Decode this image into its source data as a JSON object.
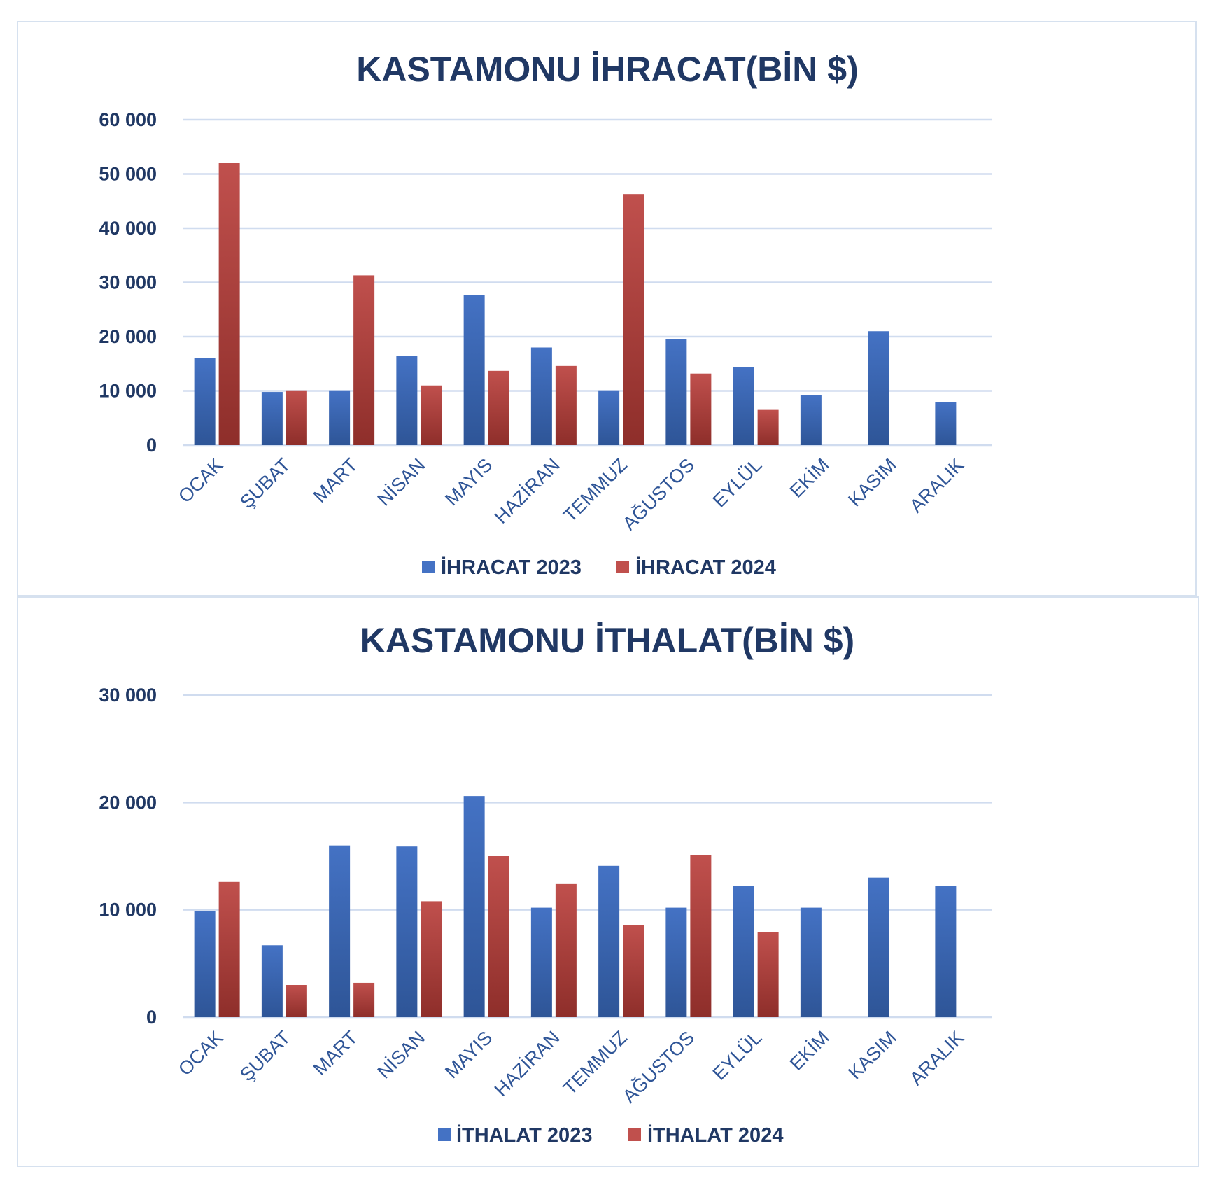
{
  "colors": {
    "series_2023": "#4472c4",
    "series_2024": "#c0504d",
    "title": "#203864",
    "category_label": "#2f5597",
    "gridline": "#d0dcef",
    "panel_border": "#d6e1ef"
  },
  "chart_data": [
    {
      "type": "bar",
      "title": "KASTAMONU İHRACAT(BİN $)",
      "xlabel": "",
      "ylabel": "",
      "categories": [
        "OCAK",
        "ŞUBAT",
        "MART",
        "NİSAN",
        "MAYIS",
        "HAZİRAN",
        "TEMMUZ",
        "AĞUSTOS",
        "EYLÜL",
        "EKİM",
        "KASIM",
        "ARALIK"
      ],
      "series": [
        {
          "name": "İHRACAT 2023",
          "values": [
            16000,
            9800,
            10100,
            16500,
            27700,
            18000,
            10100,
            19600,
            14400,
            9200,
            21000,
            7900
          ]
        },
        {
          "name": "İHRACAT 2024",
          "values": [
            52000,
            10100,
            31300,
            11000,
            13700,
            14600,
            46300,
            13200,
            6500,
            null,
            null,
            null
          ]
        }
      ],
      "ylim": [
        0,
        60000
      ],
      "yticks": [
        0,
        10000,
        20000,
        30000,
        40000,
        50000,
        60000
      ],
      "ytick_labels": [
        "0",
        "10 000",
        "20 000",
        "30 000",
        "40 000",
        "50 000",
        "60 000"
      ],
      "grid": true,
      "legend": "bottom"
    },
    {
      "type": "bar",
      "title": "KASTAMONU İTHALAT(BİN $)",
      "xlabel": "",
      "ylabel": "",
      "categories": [
        "OCAK",
        "ŞUBAT",
        "MART",
        "NİSAN",
        "MAYIS",
        "HAZİRAN",
        "TEMMUZ",
        "AĞUSTOS",
        "EYLÜL",
        "EKİM",
        "KASIM",
        "ARALIK"
      ],
      "series": [
        {
          "name": "İTHALAT 2023",
          "values": [
            9900,
            6700,
            16000,
            15900,
            20600,
            10200,
            14100,
            10200,
            12200,
            10200,
            13000,
            12200
          ]
        },
        {
          "name": "İTHALAT 2024",
          "values": [
            12600,
            3000,
            3200,
            10800,
            15000,
            12400,
            8600,
            15100,
            7900,
            null,
            null,
            null
          ]
        }
      ],
      "ylim": [
        0,
        30000
      ],
      "yticks": [
        0,
        10000,
        20000,
        30000
      ],
      "ytick_labels": [
        "0",
        "10 000",
        "20 000",
        "30 000"
      ],
      "grid": true,
      "legend": "bottom"
    }
  ]
}
